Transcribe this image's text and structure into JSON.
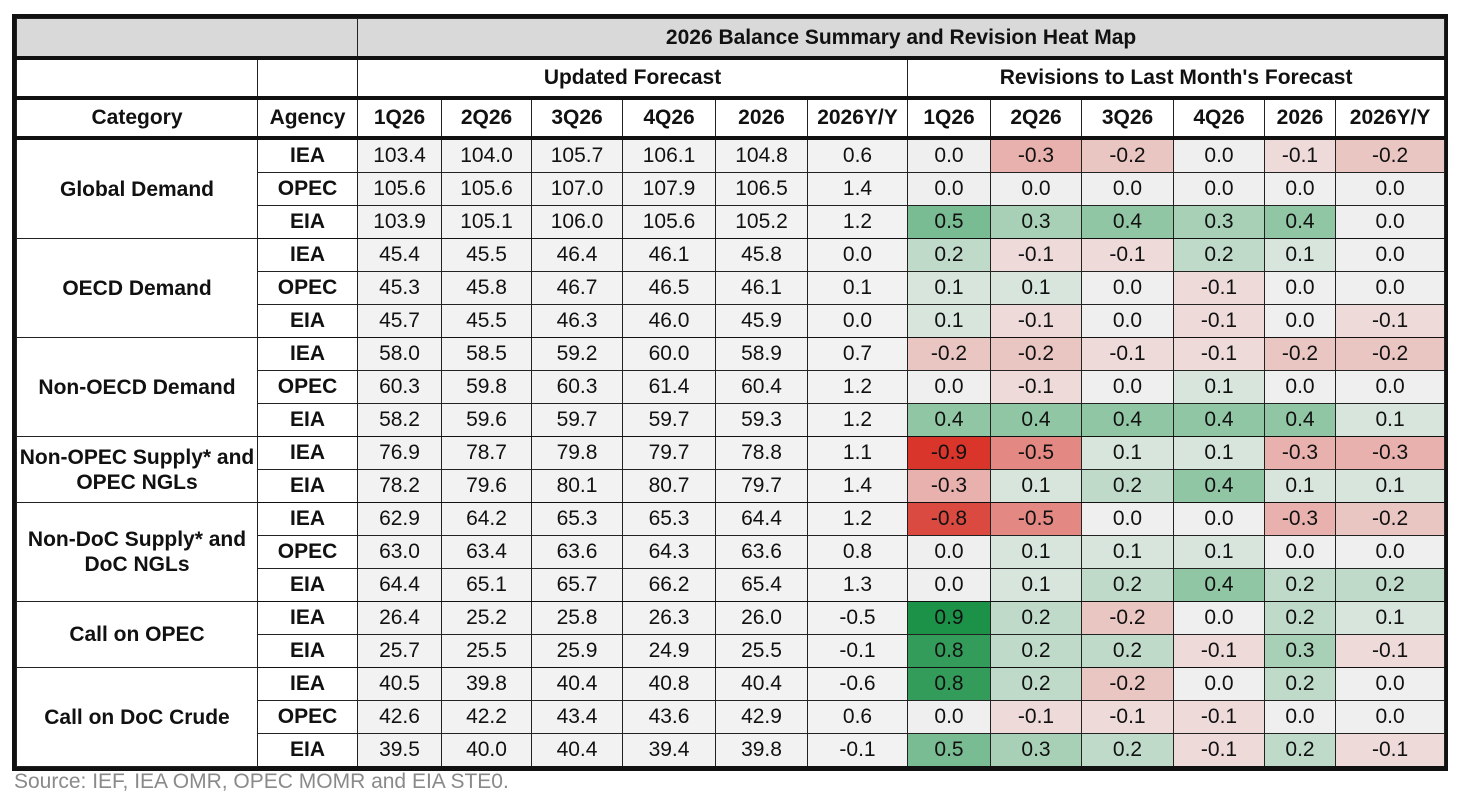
{
  "title": "2026 Balance Summary and Revision Heat Map",
  "sections": {
    "updated": "Updated Forecast",
    "revisions": "Revisions to Last Month's Forecast"
  },
  "headers": {
    "category": "Category",
    "agency": "Agency",
    "columns": [
      "1Q26",
      "2Q26",
      "3Q26",
      "4Q26",
      "2026",
      "2026Y/Y"
    ]
  },
  "colors": {
    "negative_max": "#d9352b",
    "neutral": "#efefef",
    "positive_max": "#1b9248",
    "forecast_bg": "#f2f2f2",
    "title_bg": "#d9d9d9"
  },
  "source": "Source: IEF, IEA OMR, OPEC MOMR and EIA STE0.",
  "chart_data": {
    "type": "heatmap",
    "title": "2026 Balance Summary and Revision Heat Map",
    "color_scale": {
      "min": -0.9,
      "mid": 0,
      "max": 0.9,
      "low_color": "#d9352b",
      "mid_color": "#efefef",
      "high_color": "#1b9248"
    },
    "groups": [
      {
        "category": "Global Demand",
        "rows": [
          {
            "agency": "IEA",
            "forecast": [
              "103.4",
              "104.0",
              "105.7",
              "106.1",
              "104.8",
              "0.6"
            ],
            "revisions": [
              "0.0",
              "-0.3",
              "-0.2",
              "0.0",
              "-0.1",
              "-0.2"
            ]
          },
          {
            "agency": "OPEC",
            "forecast": [
              "105.6",
              "105.6",
              "107.0",
              "107.9",
              "106.5",
              "1.4"
            ],
            "revisions": [
              "0.0",
              "0.0",
              "0.0",
              "0.0",
              "0.0",
              "0.0"
            ]
          },
          {
            "agency": "EIA",
            "forecast": [
              "103.9",
              "105.1",
              "106.0",
              "105.6",
              "105.2",
              "1.2"
            ],
            "revisions": [
              "0.5",
              "0.3",
              "0.4",
              "0.3",
              "0.4",
              "0.0"
            ]
          }
        ]
      },
      {
        "category": "OECD Demand",
        "rows": [
          {
            "agency": "IEA",
            "forecast": [
              "45.4",
              "45.5",
              "46.4",
              "46.1",
              "45.8",
              "0.0"
            ],
            "revisions": [
              "0.2",
              "-0.1",
              "-0.1",
              "0.2",
              "0.1",
              "0.0"
            ]
          },
          {
            "agency": "OPEC",
            "forecast": [
              "45.3",
              "45.8",
              "46.7",
              "46.5",
              "46.1",
              "0.1"
            ],
            "revisions": [
              "0.1",
              "0.1",
              "0.0",
              "-0.1",
              "0.0",
              "0.0"
            ]
          },
          {
            "agency": "EIA",
            "forecast": [
              "45.7",
              "45.5",
              "46.3",
              "46.0",
              "45.9",
              "0.0"
            ],
            "revisions": [
              "0.1",
              "-0.1",
              "0.0",
              "-0.1",
              "0.0",
              "-0.1"
            ]
          }
        ]
      },
      {
        "category": "Non-OECD Demand",
        "rows": [
          {
            "agency": "IEA",
            "forecast": [
              "58.0",
              "58.5",
              "59.2",
              "60.0",
              "58.9",
              "0.7"
            ],
            "revisions": [
              "-0.2",
              "-0.2",
              "-0.1",
              "-0.1",
              "-0.2",
              "-0.2"
            ]
          },
          {
            "agency": "OPEC",
            "forecast": [
              "60.3",
              "59.8",
              "60.3",
              "61.4",
              "60.4",
              "1.2"
            ],
            "revisions": [
              "0.0",
              "-0.1",
              "0.0",
              "0.1",
              "0.0",
              "0.0"
            ]
          },
          {
            "agency": "EIA",
            "forecast": [
              "58.2",
              "59.6",
              "59.7",
              "59.7",
              "59.3",
              "1.2"
            ],
            "revisions": [
              "0.4",
              "0.4",
              "0.4",
              "0.4",
              "0.4",
              "0.1"
            ]
          }
        ]
      },
      {
        "category": "Non-OPEC Supply* and OPEC NGLs",
        "rows": [
          {
            "agency": "IEA",
            "forecast": [
              "76.9",
              "78.7",
              "79.8",
              "79.7",
              "78.8",
              "1.1"
            ],
            "revisions": [
              "-0.9",
              "-0.5",
              "0.1",
              "0.1",
              "-0.3",
              "-0.3"
            ]
          },
          {
            "agency": "EIA",
            "forecast": [
              "78.2",
              "79.6",
              "80.1",
              "80.7",
              "79.7",
              "1.4"
            ],
            "revisions": [
              "-0.3",
              "0.1",
              "0.2",
              "0.4",
              "0.1",
              "0.1"
            ]
          }
        ]
      },
      {
        "category": "Non-DoC Supply* and DoC NGLs",
        "rows": [
          {
            "agency": "IEA",
            "forecast": [
              "62.9",
              "64.2",
              "65.3",
              "65.3",
              "64.4",
              "1.2"
            ],
            "revisions": [
              "-0.8",
              "-0.5",
              "0.0",
              "0.0",
              "-0.3",
              "-0.2"
            ]
          },
          {
            "agency": "OPEC",
            "forecast": [
              "63.0",
              "63.4",
              "63.6",
              "64.3",
              "63.6",
              "0.8"
            ],
            "revisions": [
              "0.0",
              "0.1",
              "0.1",
              "0.1",
              "0.0",
              "0.0"
            ]
          },
          {
            "agency": "EIA",
            "forecast": [
              "64.4",
              "65.1",
              "65.7",
              "66.2",
              "65.4",
              "1.3"
            ],
            "revisions": [
              "0.0",
              "0.1",
              "0.2",
              "0.4",
              "0.2",
              "0.2"
            ]
          }
        ]
      },
      {
        "category": "Call on OPEC",
        "rows": [
          {
            "agency": "IEA",
            "forecast": [
              "26.4",
              "25.2",
              "25.8",
              "26.3",
              "26.0",
              "-0.5"
            ],
            "revisions": [
              "0.9",
              "0.2",
              "-0.2",
              "0.0",
              "0.2",
              "0.1"
            ]
          },
          {
            "agency": "EIA",
            "forecast": [
              "25.7",
              "25.5",
              "25.9",
              "24.9",
              "25.5",
              "-0.1"
            ],
            "revisions": [
              "0.8",
              "0.2",
              "0.2",
              "-0.1",
              "0.3",
              "-0.1"
            ]
          }
        ]
      },
      {
        "category": "Call on DoC Crude",
        "rows": [
          {
            "agency": "IEA",
            "forecast": [
              "40.5",
              "39.8",
              "40.4",
              "40.8",
              "40.4",
              "-0.6"
            ],
            "revisions": [
              "0.8",
              "0.2",
              "-0.2",
              "0.0",
              "0.2",
              "0.0"
            ]
          },
          {
            "agency": "OPEC",
            "forecast": [
              "42.6",
              "42.2",
              "43.4",
              "43.6",
              "42.9",
              "0.6"
            ],
            "revisions": [
              "0.0",
              "-0.1",
              "-0.1",
              "-0.1",
              "0.0",
              "0.0"
            ]
          },
          {
            "agency": "EIA",
            "forecast": [
              "39.5",
              "40.0",
              "40.4",
              "39.4",
              "39.8",
              "-0.1"
            ],
            "revisions": [
              "0.5",
              "0.3",
              "0.2",
              "-0.1",
              "0.2",
              "-0.1"
            ]
          }
        ]
      }
    ]
  }
}
